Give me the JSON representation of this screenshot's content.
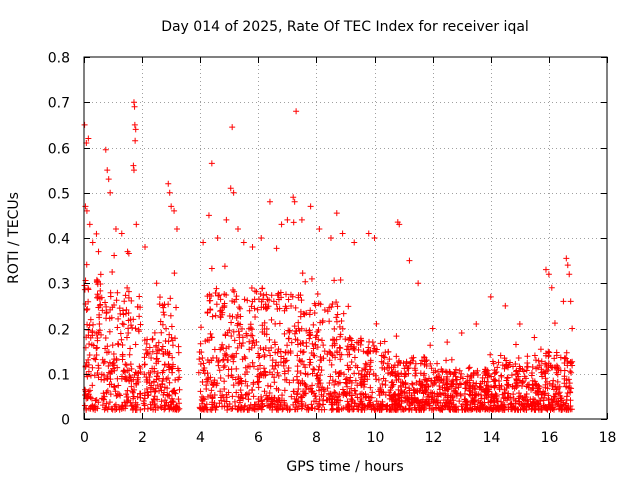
{
  "chart_data": {
    "type": "scatter",
    "title": "Day 014 of 2025, Rate Of TEC Index for receiver iqal",
    "xlabel": "GPS time / hours",
    "ylabel": "ROTI / TECUs",
    "xlim": [
      0,
      18
    ],
    "ylim": [
      0,
      0.8
    ],
    "xticks": [
      0,
      2,
      4,
      6,
      8,
      10,
      12,
      14,
      16,
      18
    ],
    "yticks": [
      0,
      0.1,
      0.2,
      0.3,
      0.4,
      0.5,
      0.6,
      0.7,
      0.8
    ],
    "xtick_labels": [
      "0",
      "2",
      "4",
      "6",
      "8",
      "10",
      "12",
      "14",
      "16",
      "18"
    ],
    "ytick_labels": [
      "0",
      "0.1",
      "0.2",
      "0.3",
      "0.4",
      "0.5",
      "0.6",
      "0.7",
      "0.8"
    ],
    "grid": true,
    "marker": "+",
    "color": "#ff0000",
    "series": [
      {
        "name": "ROTI",
        "points": [
          [
            0.02,
            0.65
          ],
          [
            0.08,
            0.61
          ],
          [
            0.15,
            0.62
          ],
          [
            0.05,
            0.47
          ],
          [
            0.1,
            0.46
          ],
          [
            0.2,
            0.43
          ],
          [
            0.3,
            0.39
          ],
          [
            0.5,
            0.37
          ],
          [
            0.75,
            0.595
          ],
          [
            0.8,
            0.55
          ],
          [
            0.85,
            0.53
          ],
          [
            0.9,
            0.5
          ],
          [
            1.1,
            0.42
          ],
          [
            1.3,
            0.41
          ],
          [
            1.5,
            0.37
          ],
          [
            1.72,
            0.7
          ],
          [
            1.74,
            0.69
          ],
          [
            1.75,
            0.65
          ],
          [
            1.78,
            0.64
          ],
          [
            1.76,
            0.615
          ],
          [
            1.7,
            0.56
          ],
          [
            1.72,
            0.55
          ],
          [
            1.8,
            0.43
          ],
          [
            2.1,
            0.38
          ],
          [
            2.5,
            0.3
          ],
          [
            2.9,
            0.52
          ],
          [
            2.95,
            0.5
          ],
          [
            3.0,
            0.47
          ],
          [
            3.1,
            0.46
          ],
          [
            3.2,
            0.42
          ],
          [
            4.1,
            0.39
          ],
          [
            4.3,
            0.45
          ],
          [
            4.4,
            0.565
          ],
          [
            4.6,
            0.4
          ],
          [
            4.9,
            0.44
          ],
          [
            5.05,
            0.51
          ],
          [
            5.1,
            0.645
          ],
          [
            5.15,
            0.5
          ],
          [
            5.3,
            0.42
          ],
          [
            5.5,
            0.39
          ],
          [
            5.8,
            0.38
          ],
          [
            6.1,
            0.4
          ],
          [
            6.4,
            0.48
          ],
          [
            6.8,
            0.43
          ],
          [
            7.0,
            0.44
          ],
          [
            7.2,
            0.49
          ],
          [
            7.25,
            0.48
          ],
          [
            7.3,
            0.68
          ],
          [
            7.5,
            0.44
          ],
          [
            7.8,
            0.47
          ],
          [
            8.1,
            0.42
          ],
          [
            8.5,
            0.4
          ],
          [
            8.7,
            0.455
          ],
          [
            8.9,
            0.41
          ],
          [
            9.3,
            0.39
          ],
          [
            9.8,
            0.41
          ],
          [
            10.0,
            0.4
          ],
          [
            10.8,
            0.435
          ],
          [
            10.85,
            0.43
          ],
          [
            11.2,
            0.35
          ],
          [
            11.5,
            0.3
          ],
          [
            12.0,
            0.2
          ],
          [
            12.5,
            0.17
          ],
          [
            13.0,
            0.19
          ],
          [
            13.5,
            0.21
          ],
          [
            14.0,
            0.27
          ],
          [
            14.5,
            0.25
          ],
          [
            15.0,
            0.21
          ],
          [
            15.5,
            0.18
          ],
          [
            15.9,
            0.33
          ],
          [
            16.0,
            0.32
          ],
          [
            16.1,
            0.29
          ],
          [
            16.5,
            0.26
          ],
          [
            16.6,
            0.355
          ],
          [
            16.65,
            0.34
          ],
          [
            16.7,
            0.32
          ],
          [
            16.75,
            0.26
          ],
          [
            16.8,
            0.2
          ]
        ]
      }
    ]
  }
}
